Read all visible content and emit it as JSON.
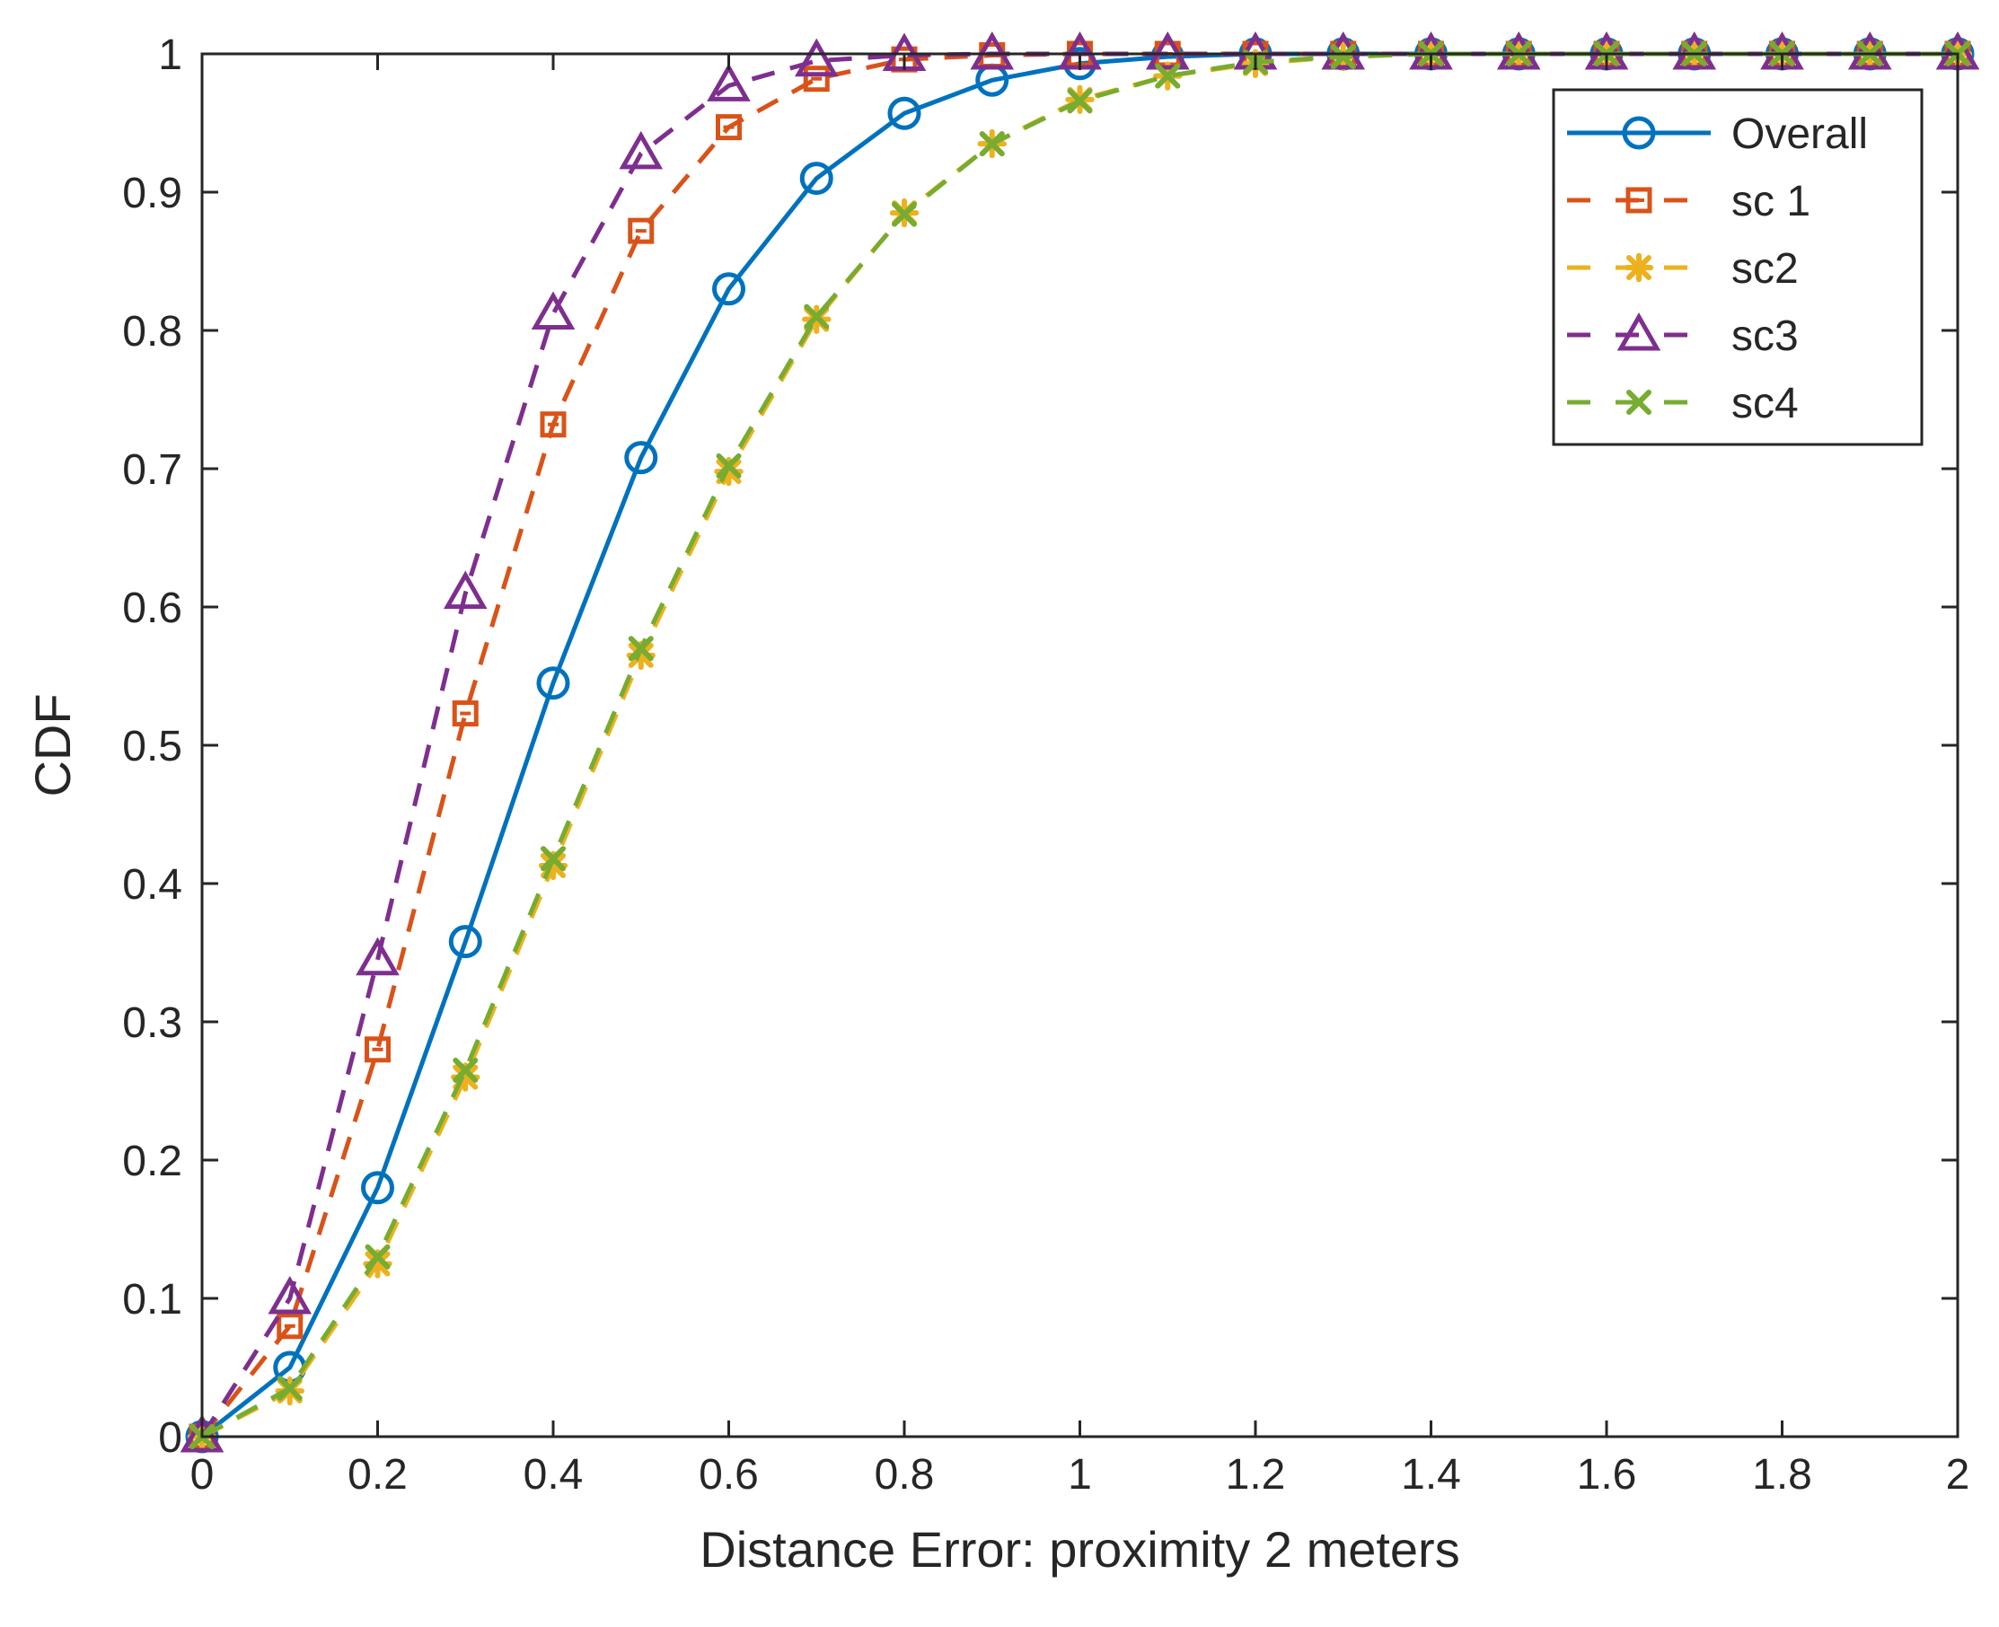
{
  "chart_data": {
    "type": "line",
    "title": "",
    "xlabel": "Distance Error: proximity 2 meters",
    "ylabel": "CDF",
    "xlim": [
      0,
      2
    ],
    "ylim": [
      0,
      1
    ],
    "grid": false,
    "legend_position": "top-right",
    "x_ticks": [
      "0",
      "0.2",
      "0.4",
      "0.6",
      "0.8",
      "1",
      "1.2",
      "1.4",
      "1.6",
      "1.8",
      "2"
    ],
    "y_ticks": [
      "0",
      "0.1",
      "0.2",
      "0.3",
      "0.4",
      "0.5",
      "0.6",
      "0.7",
      "0.8",
      "0.9",
      "1"
    ],
    "x": [
      0,
      0.1,
      0.2,
      0.3,
      0.4,
      0.5,
      0.6,
      0.7,
      0.8,
      0.9,
      1.0,
      1.1,
      1.2,
      1.3,
      1.4,
      1.5,
      1.6,
      1.7,
      1.8,
      1.9,
      2.0
    ],
    "series": [
      {
        "name": "Overall",
        "color": "#0072bd",
        "line": "solid",
        "marker": "circle",
        "values": [
          0,
          0.05,
          0.18,
          0.358,
          0.545,
          0.708,
          0.83,
          0.91,
          0.957,
          0.981,
          0.993,
          0.998,
          1,
          1,
          1,
          1,
          1,
          1,
          1,
          1,
          1
        ]
      },
      {
        "name": "sc 1",
        "color": "#d95319",
        "line": "dashed",
        "marker": "square",
        "values": [
          0,
          0.08,
          0.28,
          0.523,
          0.732,
          0.872,
          0.947,
          0.982,
          0.996,
          0.999,
          1,
          1,
          1,
          1,
          1,
          1,
          1,
          1,
          1,
          1,
          1
        ]
      },
      {
        "name": "sc2",
        "color": "#edb120",
        "line": "dashed",
        "marker": "asterisk",
        "values": [
          0,
          0.033,
          0.125,
          0.26,
          0.413,
          0.565,
          0.698,
          0.808,
          0.885,
          0.935,
          0.967,
          0.984,
          0.993,
          0.998,
          1,
          1,
          1,
          1,
          1,
          1,
          1
        ]
      },
      {
        "name": "sc3",
        "color": "#7e2f8e",
        "line": "dashed",
        "marker": "triangle",
        "values": [
          0,
          0.1,
          0.345,
          0.61,
          0.812,
          0.928,
          0.977,
          0.995,
          0.999,
          1,
          1,
          1,
          1,
          1,
          1,
          1,
          1,
          1,
          1,
          1,
          1
        ]
      },
      {
        "name": "sc4",
        "color": "#77ac30",
        "line": "dashed",
        "marker": "x",
        "values": [
          0,
          0.035,
          0.13,
          0.265,
          0.418,
          0.57,
          0.702,
          0.81,
          0.884,
          0.935,
          0.966,
          0.984,
          0.994,
          0.998,
          1,
          1,
          1,
          1,
          1,
          1,
          1
        ]
      }
    ]
  }
}
